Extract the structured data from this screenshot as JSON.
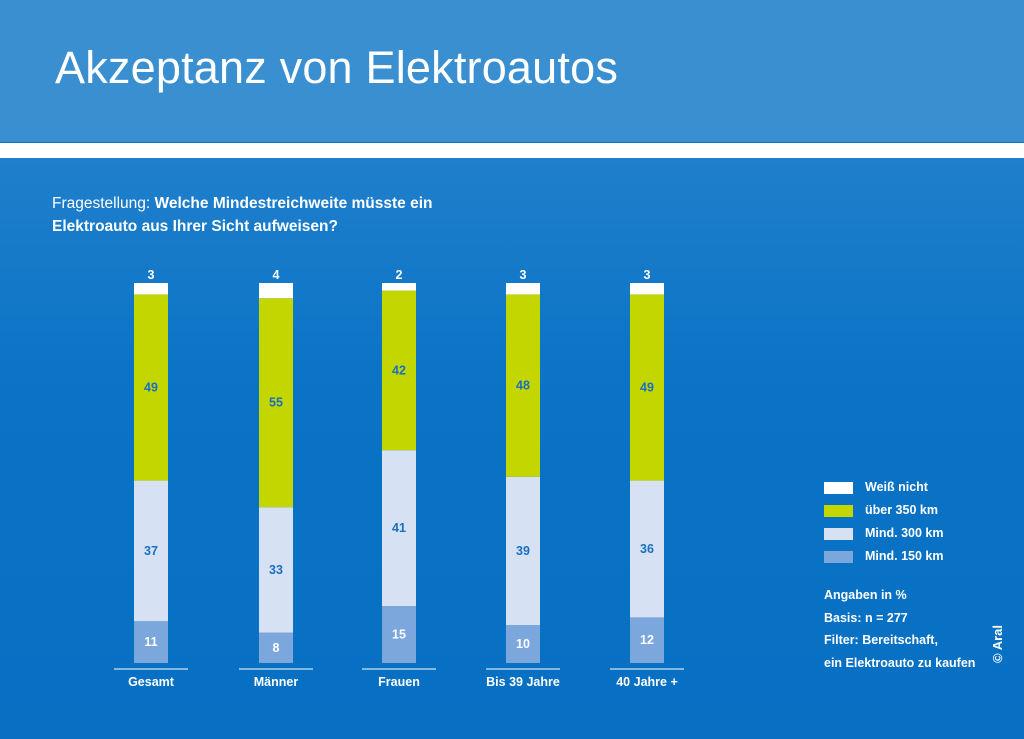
{
  "title": "Akzeptanz von Elektroautos",
  "question": {
    "prefix": "Fragestellung: ",
    "text": "Welche Mindestreichweite müsste ein Elektroauto aus Ihrer Sicht aufweisen?"
  },
  "legend": [
    {
      "label": "Weiß nicht",
      "color": "#ffffff"
    },
    {
      "label": "über 350 km",
      "color": "#c3d600"
    },
    {
      "label": "Mind. 300 km",
      "color": "#d6e1f3"
    },
    {
      "label": "Mind. 150 km",
      "color": "#7ba7dc"
    }
  ],
  "notes": {
    "unit": "Angaben in %",
    "basis": "Basis: n = 277",
    "filter_line1": "Filter: Bereitschaft,",
    "filter_line2": "ein Elektroauto zu kaufen"
  },
  "copyright": "© Aral",
  "chart_data": {
    "type": "bar",
    "stacked": true,
    "unit": "%",
    "categories": [
      "Gesamt",
      "Männer",
      "Frauen",
      "Bis 39 Jahre",
      "40 Jahre +"
    ],
    "series": [
      {
        "name": "Mind. 150 km",
        "color": "#7ba7dc",
        "label_color": "#ffffff",
        "values": [
          11,
          8,
          15,
          10,
          12
        ]
      },
      {
        "name": "Mind. 300 km",
        "color": "#d6e1f3",
        "label_color": "#1a6fc0",
        "values": [
          37,
          33,
          41,
          39,
          36
        ]
      },
      {
        "name": "über 350 km",
        "color": "#c3d600",
        "label_color": "#1a6fc0",
        "values": [
          49,
          55,
          42,
          48,
          49
        ]
      },
      {
        "name": "Weiß nicht",
        "color": "#ffffff",
        "label_color": "#ffffff",
        "values": [
          3,
          4,
          2,
          3,
          3
        ]
      }
    ]
  }
}
